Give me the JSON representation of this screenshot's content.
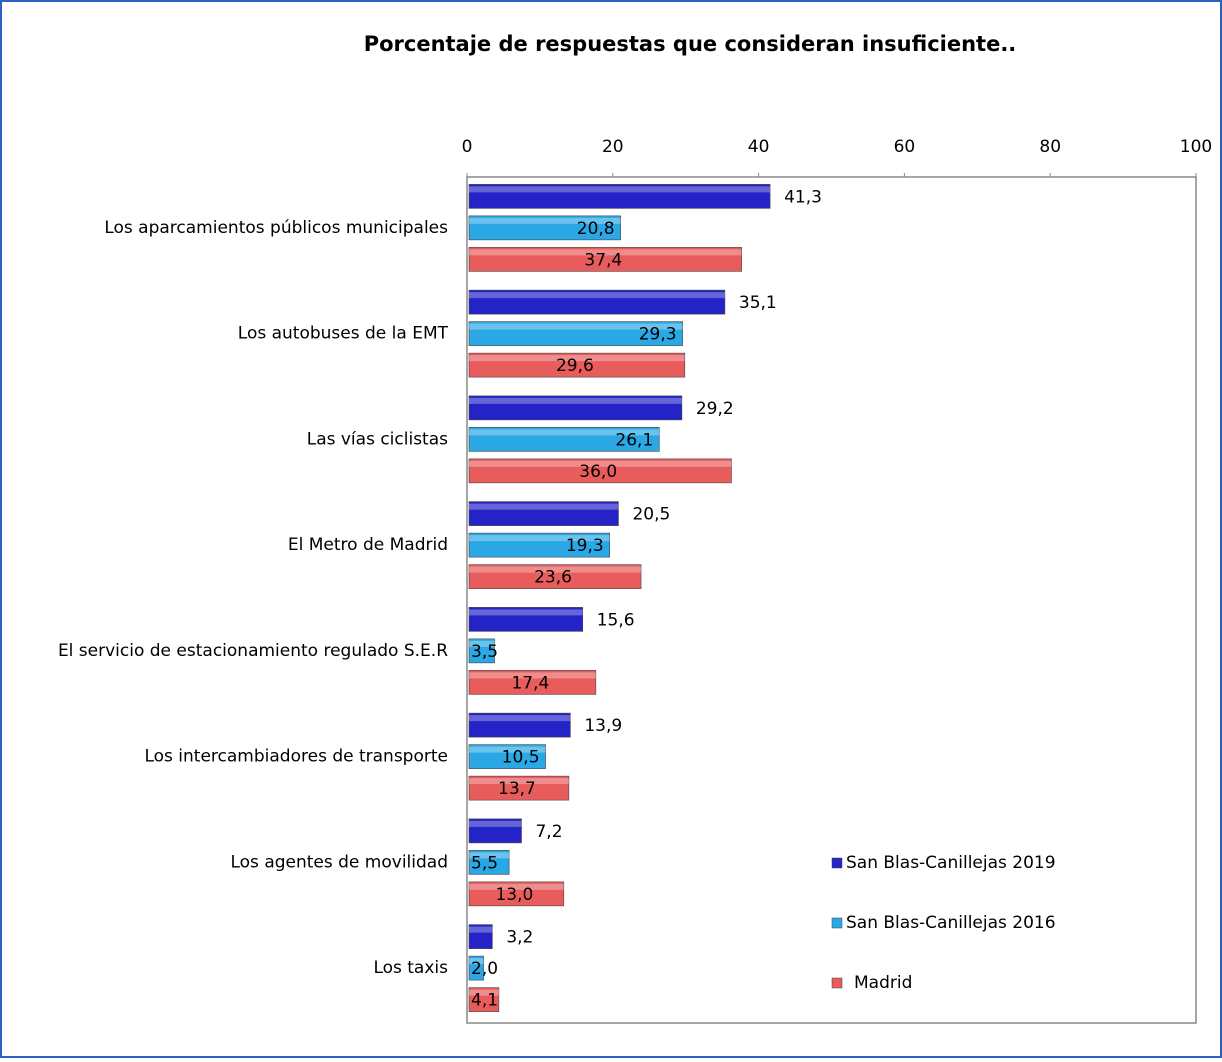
{
  "chart_data": {
    "type": "bar",
    "orientation": "horizontal",
    "title": "Porcentaje de respuestas que consideran insuficiente..",
    "categories": [
      "Los aparcamientos públicos municipales",
      "Los autobuses de la  EMT",
      "Las vías ciclistas",
      "El Metro de Madrid",
      "El servicio de estacionamiento regulado S.E.R",
      "Los intercambiadores de transporte",
      "Los agentes de movilidad",
      "Los taxis"
    ],
    "series": [
      {
        "name": "San Blas-Canillejas 2019",
        "color": "#2323c8",
        "values": [
          41.3,
          35.1,
          29.2,
          20.5,
          15.6,
          13.9,
          7.2,
          3.2
        ],
        "value_labels": [
          "41,3",
          "35,1",
          "29,2",
          "20,5",
          "15,6",
          "13,9",
          "7,2",
          "3,2"
        ]
      },
      {
        "name": "San Blas-Canillejas 2016",
        "color": "#2aa8e6",
        "values": [
          20.8,
          29.3,
          26.1,
          19.3,
          3.5,
          10.5,
          5.5,
          2.0
        ],
        "value_labels": [
          "20,8",
          "29,3",
          "26,1",
          "19,3",
          "3,5",
          "10,5",
          "5,5",
          "2,0"
        ]
      },
      {
        "name": "Madrid",
        "color": "#e85c5c",
        "values": [
          37.4,
          29.6,
          36.0,
          23.6,
          17.4,
          13.7,
          13.0,
          4.1
        ],
        "value_labels": [
          "37,4",
          "29,6",
          "36,0",
          "23,6",
          "17,4",
          "13,7",
          "13,0",
          "4,1"
        ]
      }
    ],
    "xlim": [
      0,
      100
    ],
    "xticks": [
      0,
      20,
      40,
      60,
      80,
      100
    ],
    "grid": false
  }
}
